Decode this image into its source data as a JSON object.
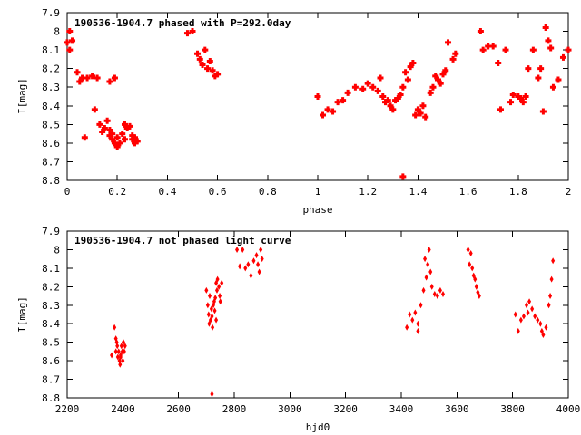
{
  "chart_data": [
    {
      "type": "scatter",
      "title": "190536-1904.7 phased with P=292.0day",
      "xlabel": "phase",
      "ylabel": "I[mag]",
      "xlim": [
        0,
        2
      ],
      "ylim": [
        7.9,
        8.8
      ],
      "y_inverted": true,
      "x_ticks": [
        "0",
        "0.2",
        "0.4",
        "0.6",
        "0.8",
        "1",
        "1.2",
        "1.4",
        "1.6",
        "1.8",
        "2"
      ],
      "y_ticks": [
        "7.9",
        "8",
        "8.1",
        "8.2",
        "8.3",
        "8.4",
        "8.5",
        "8.6",
        "8.7",
        "8.8"
      ],
      "marker": "star",
      "color": "#ff0000",
      "series": [
        {
          "x": [
            0.0,
            0.01,
            0.01,
            0.02,
            0.04,
            0.05,
            0.06,
            0.07,
            0.08,
            0.1,
            0.11,
            0.12,
            0.13,
            0.14,
            0.15,
            0.16,
            0.17,
            0.17,
            0.18,
            0.18,
            0.19,
            0.2,
            0.2,
            0.21,
            0.22,
            0.23,
            0.23,
            0.24,
            0.25,
            0.26,
            0.26,
            0.27,
            0.27,
            0.28,
            0.19,
            0.17,
            0.48,
            0.5,
            0.52,
            0.53,
            0.54,
            0.55,
            0.56,
            0.57,
            0.58,
            0.59,
            0.6,
            1.0,
            1.02,
            1.04,
            1.06,
            1.08,
            1.1,
            1.12,
            1.15,
            1.18,
            1.2,
            1.22,
            1.24,
            1.25,
            1.26,
            1.27,
            1.28,
            1.29,
            1.3,
            1.31,
            1.32,
            1.33,
            1.34,
            1.35,
            1.36,
            1.37,
            1.38,
            1.39,
            1.4,
            1.41,
            1.42,
            1.43,
            1.45,
            1.46,
            1.47,
            1.48,
            1.49,
            1.5,
            1.51,
            1.52,
            1.54,
            1.55,
            1.34,
            1.65,
            1.66,
            1.68,
            1.7,
            1.72,
            1.73,
            1.75,
            1.77,
            1.78,
            1.8,
            1.81,
            1.82,
            1.83,
            1.84,
            1.86,
            1.88,
            1.89,
            1.9,
            1.91,
            1.92,
            1.93,
            1.94,
            1.96,
            1.98,
            2.0
          ],
          "y": [
            8.06,
            8.0,
            8.1,
            8.05,
            8.22,
            8.27,
            8.25,
            8.57,
            8.25,
            8.24,
            8.42,
            8.25,
            8.5,
            8.54,
            8.52,
            8.48,
            8.53,
            8.56,
            8.58,
            8.55,
            8.6,
            8.57,
            8.62,
            8.6,
            8.55,
            8.58,
            8.5,
            8.52,
            8.51,
            8.56,
            8.58,
            8.57,
            8.6,
            8.59,
            8.25,
            8.27,
            8.01,
            8.0,
            8.12,
            8.15,
            8.18,
            8.1,
            8.2,
            8.16,
            8.21,
            8.24,
            8.23,
            8.35,
            8.45,
            8.42,
            8.43,
            8.38,
            8.37,
            8.33,
            8.3,
            8.31,
            8.28,
            8.3,
            8.32,
            8.25,
            8.35,
            8.38,
            8.37,
            8.4,
            8.42,
            8.37,
            8.36,
            8.34,
            8.3,
            8.22,
            8.26,
            8.19,
            8.17,
            8.45,
            8.42,
            8.44,
            8.4,
            8.46,
            8.33,
            8.3,
            8.24,
            8.26,
            8.28,
            8.23,
            8.21,
            8.06,
            8.15,
            8.12,
            8.78,
            8.0,
            8.1,
            8.08,
            8.08,
            8.17,
            8.42,
            8.1,
            8.38,
            8.34,
            8.35,
            8.36,
            8.38,
            8.35,
            8.2,
            8.1,
            8.25,
            8.2,
            8.43,
            7.98,
            8.05,
            8.09,
            8.3,
            8.26,
            8.14,
            8.1
          ]
        }
      ]
    },
    {
      "type": "scatter",
      "title": "190536-1904.7 not phased light curve",
      "xlabel": "hjd0",
      "ylabel": "I[mag]",
      "xlim": [
        2200,
        4000
      ],
      "ylim": [
        7.9,
        8.8
      ],
      "y_inverted": true,
      "x_ticks": [
        "2200",
        "2400",
        "2600",
        "2800",
        "3000",
        "3200",
        "3400",
        "3600",
        "3800",
        "4000"
      ],
      "y_ticks": [
        "7.9",
        "8",
        "8.1",
        "8.2",
        "8.3",
        "8.4",
        "8.5",
        "8.6",
        "8.7",
        "8.8"
      ],
      "marker": "diamond",
      "color": "#ff0000",
      "series": [
        {
          "x": [
            2360,
            2370,
            2375,
            2378,
            2380,
            2382,
            2385,
            2388,
            2390,
            2392,
            2395,
            2398,
            2400,
            2402,
            2405,
            2408,
            2375,
            2392,
            2700,
            2705,
            2708,
            2710,
            2712,
            2715,
            2718,
            2720,
            2722,
            2725,
            2728,
            2730,
            2732,
            2735,
            2738,
            2740,
            2745,
            2748,
            2750,
            2755,
            2720,
            2735,
            2820,
            2830,
            2840,
            2850,
            2860,
            2870,
            2880,
            2885,
            2890,
            2895,
            2810,
            2900,
            3420,
            3430,
            3440,
            3450,
            3460,
            3470,
            3480,
            3490,
            3495,
            3500,
            3505,
            3510,
            3520,
            3530,
            3540,
            3550,
            3460,
            3485,
            3640,
            3650,
            3655,
            3660,
            3665,
            3670,
            3675,
            3680,
            3645,
            3810,
            3820,
            3830,
            3840,
            3850,
            3855,
            3860,
            3870,
            3880,
            3890,
            3900,
            3910,
            3920,
            3930,
            3935,
            3940,
            3945,
            3905
          ],
          "y": [
            8.57,
            8.42,
            8.55,
            8.5,
            8.52,
            8.58,
            8.55,
            8.6,
            8.62,
            8.58,
            8.52,
            8.55,
            8.6,
            8.5,
            8.55,
            8.52,
            8.48,
            8.57,
            8.22,
            8.3,
            8.35,
            8.4,
            8.25,
            8.38,
            8.32,
            8.36,
            8.42,
            8.3,
            8.28,
            8.33,
            8.26,
            8.18,
            8.22,
            8.16,
            8.2,
            8.25,
            8.28,
            8.18,
            8.78,
            8.38,
            8.09,
            8.0,
            8.1,
            8.08,
            8.14,
            8.06,
            8.03,
            8.08,
            8.12,
            8.0,
            8.0,
            8.05,
            8.42,
            8.35,
            8.38,
            8.34,
            8.4,
            8.3,
            8.22,
            8.15,
            8.08,
            8.0,
            8.12,
            8.2,
            8.24,
            8.25,
            8.22,
            8.24,
            8.44,
            8.05,
            8.0,
            8.02,
            8.1,
            8.14,
            8.16,
            8.2,
            8.23,
            8.25,
            8.08,
            8.35,
            8.44,
            8.38,
            8.36,
            8.3,
            8.34,
            8.28,
            8.32,
            8.36,
            8.38,
            8.4,
            8.46,
            8.42,
            8.3,
            8.25,
            8.16,
            8.06,
            8.44
          ]
        }
      ]
    }
  ]
}
